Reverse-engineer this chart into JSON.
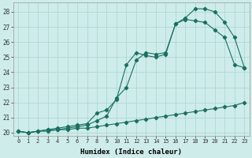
{
  "xlabel": "Humidex (Indice chaleur)",
  "ylabel": "",
  "bg_color": "#ceecea",
  "grid_color": "#aed8d4",
  "line_color": "#1a7060",
  "xlim": [
    -0.5,
    23.5
  ],
  "ylim": [
    19.8,
    28.6
  ],
  "yticks": [
    20,
    21,
    22,
    23,
    24,
    25,
    26,
    27,
    28
  ],
  "xticks": [
    0,
    1,
    2,
    3,
    4,
    5,
    6,
    7,
    8,
    9,
    10,
    11,
    12,
    13,
    14,
    15,
    16,
    17,
    18,
    19,
    20,
    21,
    22,
    23
  ],
  "series1_x": [
    0,
    1,
    2,
    3,
    4,
    5,
    6,
    7,
    8,
    9,
    10,
    11,
    12,
    13,
    14,
    15,
    16,
    17,
    18,
    19,
    20,
    21,
    22,
    23
  ],
  "series1_y": [
    20.1,
    20.0,
    20.1,
    20.1,
    20.2,
    20.2,
    20.3,
    20.3,
    20.4,
    20.5,
    20.6,
    20.7,
    20.8,
    20.9,
    21.0,
    21.1,
    21.2,
    21.3,
    21.4,
    21.5,
    21.6,
    21.7,
    21.8,
    22.0
  ],
  "series2_x": [
    0,
    1,
    2,
    3,
    4,
    5,
    6,
    7,
    8,
    9,
    10,
    11,
    12,
    13,
    14,
    15,
    16,
    17,
    18,
    19,
    20,
    21,
    22,
    23
  ],
  "series2_y": [
    20.1,
    20.0,
    20.1,
    20.2,
    20.2,
    20.3,
    20.4,
    20.5,
    20.8,
    21.1,
    22.3,
    23.0,
    24.8,
    25.3,
    25.2,
    25.3,
    27.2,
    27.5,
    27.4,
    27.3,
    26.8,
    26.3,
    24.5,
    24.3
  ],
  "series3_x": [
    0,
    1,
    2,
    3,
    4,
    5,
    6,
    7,
    8,
    9,
    10,
    11,
    12,
    13,
    14,
    15,
    16,
    17,
    18,
    19,
    20,
    21,
    22,
    23
  ],
  "series3_y": [
    20.1,
    20.0,
    20.1,
    20.2,
    20.3,
    20.4,
    20.5,
    20.6,
    21.3,
    21.5,
    22.2,
    24.5,
    25.3,
    25.1,
    25.0,
    25.2,
    27.2,
    27.6,
    28.2,
    28.2,
    28.0,
    27.3,
    26.3,
    24.3
  ]
}
